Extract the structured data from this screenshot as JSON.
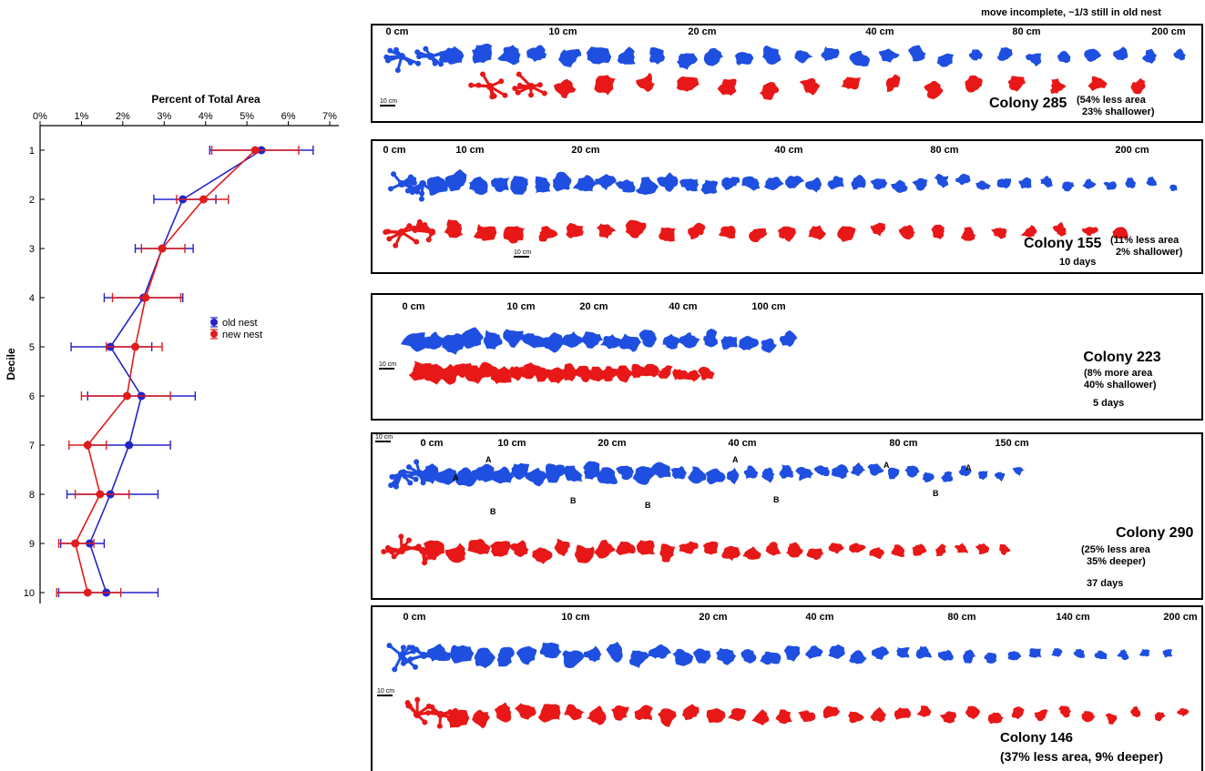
{
  "chart_data": {
    "type": "scatter",
    "title": "Percent of Total Area",
    "xlabel": "Percent of Total Area",
    "ylabel": "Decile",
    "xlim": [
      0,
      7
    ],
    "ylim": [
      1,
      10
    ],
    "x_ticks": [
      "0%",
      "1%",
      "2%",
      "3%",
      "4%",
      "5%",
      "6%",
      "7%"
    ],
    "y_ticks": [
      "1",
      "2",
      "3",
      "4",
      "5",
      "6",
      "7",
      "8",
      "9",
      "10"
    ],
    "legend_position": "right",
    "series": [
      {
        "name": "old nest",
        "color": "#2323c8",
        "deciles": [
          1,
          2,
          3,
          4,
          5,
          6,
          7,
          8,
          9,
          10
        ],
        "mean": [
          5.35,
          3.45,
          2.95,
          2.5,
          1.7,
          2.45,
          2.15,
          1.7,
          1.2,
          1.6
        ],
        "lower": [
          4.1,
          2.75,
          2.3,
          1.55,
          0.75,
          1.15,
          1.15,
          0.65,
          0.5,
          0.45
        ],
        "upper": [
          6.6,
          4.25,
          3.7,
          3.45,
          2.7,
          3.75,
          3.15,
          2.85,
          1.55,
          2.85
        ]
      },
      {
        "name": "new nest",
        "color": "#e01c1c",
        "deciles": [
          1,
          2,
          3,
          4,
          5,
          6,
          7,
          8,
          9,
          10
        ],
        "mean": [
          5.2,
          3.95,
          2.95,
          2.55,
          2.3,
          2.1,
          1.15,
          1.45,
          0.85,
          1.15
        ],
        "lower": [
          4.15,
          3.3,
          2.45,
          1.75,
          1.6,
          1.0,
          0.7,
          0.85,
          0.45,
          0.4
        ],
        "upper": [
          6.25,
          4.55,
          3.5,
          3.4,
          2.95,
          3.15,
          1.6,
          2.15,
          1.3,
          1.95
        ]
      }
    ]
  },
  "header_note": "move incomplete, ~1/3 still in old nest",
  "scale_bar_label": "10 cm",
  "panels": [
    {
      "depths": [
        "0 cm",
        "10 cm",
        "20 cm",
        "40 cm",
        "80 cm",
        "200 cm"
      ],
      "colony": "Colony 285",
      "change_line1": "(54% less area",
      "change_line2": "23% shallower)",
      "duration": "",
      "old_chambers": 28,
      "new_chambers": 17
    },
    {
      "depths": [
        "0 cm",
        "10 cm",
        "20 cm",
        "40 cm",
        "80 cm",
        "200 cm"
      ],
      "colony": "Colony 155",
      "change_line1": "(11% less area",
      "change_line2": "2% shallower)",
      "duration": "10 days",
      "old_chambers": 38,
      "new_chambers": 25
    },
    {
      "depths": [
        "0 cm",
        "10 cm",
        "20 cm",
        "40 cm",
        "100 cm"
      ],
      "colony": "Colony 223",
      "change_line1": "(8% more area",
      "change_line2": "40% shallower)",
      "duration": "5 days",
      "old_chambers": 20,
      "new_chambers": 22
    },
    {
      "depths": [
        "0 cm",
        "10 cm",
        "20 cm",
        "40 cm",
        "80 cm",
        "150 cm"
      ],
      "colony": "Colony 290",
      "change_line1": "(25% less area",
      "change_line2": "35% deeper)",
      "duration": "37 days",
      "old_chambers": 36,
      "new_chambers": 30,
      "marker_a": "A",
      "marker_b": "B"
    },
    {
      "depths": [
        "0 cm",
        "10 cm",
        "20 cm",
        "40 cm",
        "80 cm",
        "140 cm",
        "200 cm"
      ],
      "colony": "Colony 146",
      "change_line1": "(37% less area, 9% deeper)",
      "change_line2": "",
      "duration": "",
      "old_chambers": 36,
      "new_chambers": 34
    }
  ],
  "colors": {
    "old_nest": "#1f4fe0",
    "new_nest": "#e81818"
  }
}
